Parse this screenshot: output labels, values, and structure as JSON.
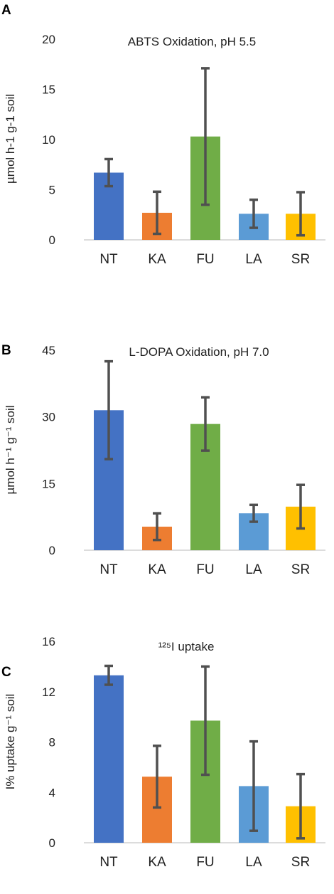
{
  "panel_labels": [
    "A",
    "B",
    "C"
  ],
  "chart_data": [
    {
      "type": "bar",
      "panel": "A",
      "title": "ABTS Oxidation, pH 5.5",
      "ylabel": "µmol h-1 g-1 soil",
      "categories": [
        "NT",
        "KA",
        "FU",
        "LA",
        "SR"
      ],
      "values": [
        6.7,
        2.7,
        10.3,
        2.6,
        2.6
      ],
      "errors": [
        1.35,
        2.1,
        6.8,
        1.4,
        2.15
      ],
      "colors": [
        "#4472C4",
        "#ED7D31",
        "#70AD47",
        "#5B9BD5",
        "#FFC000"
      ],
      "ylim": [
        0,
        20
      ],
      "yticks": [
        0,
        5,
        10,
        15,
        20
      ],
      "grid": false
    },
    {
      "type": "bar",
      "panel": "B",
      "title": "L-DOPA Oxidation, pH 7.0",
      "ylabel": "µmol h⁻¹ g⁻¹ soil",
      "categories": [
        "NT",
        "KA",
        "FU",
        "LA",
        "SR"
      ],
      "values": [
        31.5,
        5.3,
        28.4,
        8.3,
        9.8
      ],
      "errors": [
        11.0,
        3.0,
        6.0,
        1.9,
        4.9
      ],
      "colors": [
        "#4472C4",
        "#ED7D31",
        "#70AD47",
        "#5B9BD5",
        "#FFC000"
      ],
      "ylim": [
        0,
        45
      ],
      "yticks": [
        0,
        15,
        30,
        45
      ],
      "grid": false
    },
    {
      "type": "bar",
      "panel": "C",
      "title": "¹²⁵I  uptake",
      "ylabel": "I% uptake g⁻¹ soil",
      "categories": [
        "NT",
        "KA",
        "FU",
        "LA",
        "SR"
      ],
      "values": [
        13.3,
        5.25,
        9.7,
        4.5,
        2.9
      ],
      "errors": [
        0.75,
        2.45,
        4.3,
        3.55,
        2.55
      ],
      "colors": [
        "#4472C4",
        "#ED7D31",
        "#70AD47",
        "#5B9BD5",
        "#FFC000"
      ],
      "ylim": [
        0,
        16
      ],
      "yticks": [
        0,
        4,
        8,
        12,
        16
      ],
      "grid": false
    }
  ]
}
